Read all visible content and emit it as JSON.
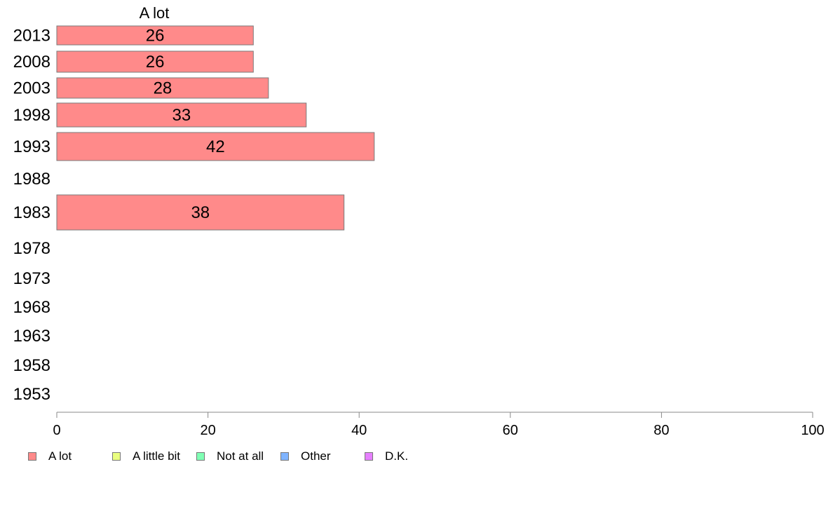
{
  "chart_data": {
    "type": "bar",
    "orientation": "horizontal",
    "series_header": "A lot",
    "categories": [
      "2013",
      "2008",
      "2003",
      "1998",
      "1993",
      "1988",
      "1983",
      "1978",
      "1973",
      "1968",
      "1963",
      "1958",
      "1953"
    ],
    "series": [
      {
        "name": "A lot",
        "color": "#ff8a8a",
        "values": [
          26,
          26,
          28,
          33,
          42,
          null,
          38,
          null,
          null,
          null,
          null,
          null,
          null
        ]
      }
    ],
    "xlim": [
      0,
      100
    ],
    "xticks": [
      0,
      20,
      40,
      60,
      80,
      100
    ],
    "legend": {
      "placement": "bottom-left",
      "items": [
        {
          "label": "A lot",
          "color": "#ff8a8a"
        },
        {
          "label": "A little bit",
          "color": "#eaff80"
        },
        {
          "label": "Not at all",
          "color": "#80ffb4"
        },
        {
          "label": "Other",
          "color": "#80b4ff"
        },
        {
          "label": "D.K.",
          "color": "#e680ff"
        }
      ]
    },
    "grid": false
  }
}
